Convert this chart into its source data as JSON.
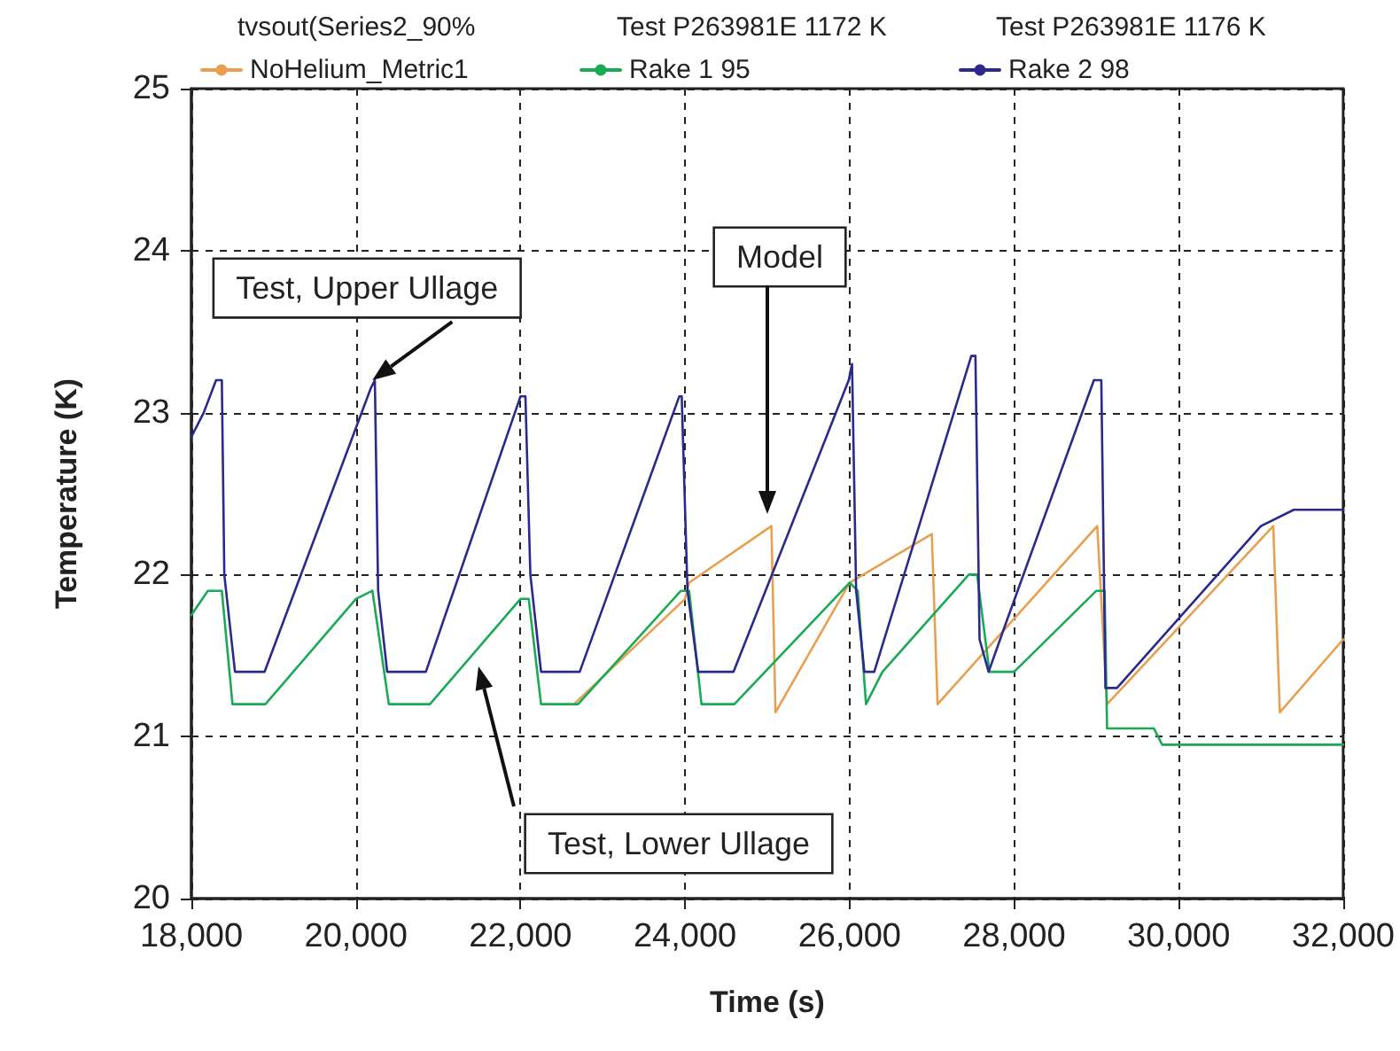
{
  "chart_data": {
    "type": "line",
    "xlabel": "Time (s)",
    "ylabel": "Temperature (K)",
    "xlim": [
      18000,
      32000
    ],
    "ylim": [
      20,
      25
    ],
    "xticks": [
      {
        "value": 18000,
        "label": "18,000"
      },
      {
        "value": 20000,
        "label": "20,000"
      },
      {
        "value": 22000,
        "label": "22,000"
      },
      {
        "value": 24000,
        "label": "24,000"
      },
      {
        "value": 26000,
        "label": "26,000"
      },
      {
        "value": 28000,
        "label": "28,000"
      },
      {
        "value": 30000,
        "label": "30,000"
      },
      {
        "value": 32000,
        "label": "32,000"
      }
    ],
    "yticks": [
      20,
      21,
      22,
      23,
      24,
      25
    ],
    "grid": true,
    "legend": "top",
    "marker": "none",
    "line_style": "solid",
    "annotations": [
      "tvsout(Series2_90%",
      "Test P263981E 1172 K",
      "Test P263981E 1176 K",
      {
        "text": "Test, Upper Ullage",
        "x": 20200,
        "y": 23.2
      },
      "Model",
      "Test, Lower Ullage"
    ],
    "series": [
      {
        "name": "NoHelium_Metric1",
        "color": "#e8a050",
        "x": [
          22650,
          24000,
          24050,
          25050,
          25100,
          26000,
          27000,
          27070,
          29010,
          29130,
          31150,
          31230,
          32000
        ],
        "values": [
          21.2,
          21.85,
          21.95,
          22.3,
          21.15,
          21.95,
          22.25,
          21.2,
          22.3,
          21.2,
          22.3,
          21.15,
          21.6
        ]
      },
      {
        "name": "Rake 1 95",
        "color": "#1aaa55",
        "x": [
          18000,
          18200,
          18370,
          18500,
          18900,
          20000,
          20200,
          20400,
          20900,
          22000,
          22100,
          22250,
          22700,
          23950,
          24050,
          24200,
          24600,
          26000,
          26100,
          26200,
          26400,
          27450,
          27550,
          27700,
          28000,
          29000,
          29100,
          29130,
          29700,
          29800,
          32000
        ],
        "values": [
          21.75,
          21.9,
          21.9,
          21.2,
          21.2,
          21.85,
          21.9,
          21.2,
          21.2,
          21.85,
          21.85,
          21.2,
          21.2,
          21.9,
          21.9,
          21.2,
          21.2,
          21.95,
          21.9,
          21.2,
          21.4,
          22.0,
          22.0,
          21.4,
          21.4,
          21.9,
          21.9,
          21.05,
          21.05,
          20.95,
          20.95
        ]
      },
      {
        "name": "Rake 2 98",
        "color": "#2b2a8c",
        "x": [
          18000,
          18150,
          18300,
          18370,
          18400,
          18530,
          18890,
          20180,
          20230,
          20270,
          20380,
          20850,
          22000,
          22060,
          22120,
          22250,
          22720,
          23930,
          23960,
          24030,
          24160,
          24590,
          25990,
          26030,
          26080,
          26180,
          26300,
          27480,
          27530,
          27580,
          27690,
          27900,
          28970,
          29060,
          29110,
          29250,
          31000,
          31400,
          32000
        ],
        "values": [
          22.85,
          23.0,
          23.2,
          23.2,
          22.0,
          21.4,
          21.4,
          23.15,
          23.2,
          21.9,
          21.4,
          21.4,
          23.1,
          23.1,
          22.0,
          21.4,
          21.4,
          23.1,
          23.1,
          21.9,
          21.4,
          21.4,
          23.2,
          23.3,
          21.9,
          21.4,
          21.4,
          23.35,
          23.35,
          21.6,
          21.4,
          21.7,
          23.2,
          23.2,
          21.3,
          21.3,
          22.3,
          22.4,
          22.4
        ]
      }
    ]
  }
}
